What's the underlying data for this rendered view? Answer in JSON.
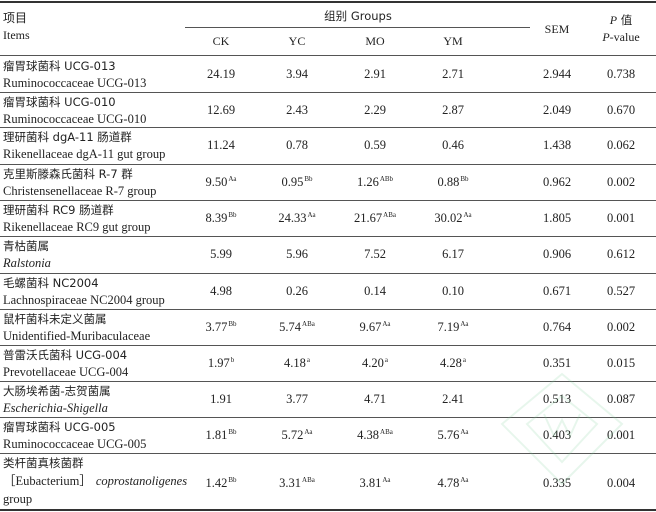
{
  "header": {
    "item_zh": "项目",
    "item_en": "Items",
    "group_label": "组别 Groups",
    "columns": [
      "CK",
      "YC",
      "MO",
      "YM"
    ],
    "sem": "SEM",
    "p_zh_italic": "P",
    "p_zh_rest": " 值",
    "p_en_italic": "P",
    "p_en_rest": "-value"
  },
  "rows": [
    {
      "name_zh": "瘤胃球菌科 UCG-013",
      "name_en": "Ruminococcaceae UCG-013",
      "en_italic": false,
      "values": [
        {
          "v": "24.19",
          "s": ""
        },
        {
          "v": "3.94",
          "s": ""
        },
        {
          "v": "2.91",
          "s": ""
        },
        {
          "v": "2.71",
          "s": ""
        }
      ],
      "sem": "2.944",
      "p": "0.738"
    },
    {
      "name_zh": "瘤胃球菌科 UCG-010",
      "name_en": "Ruminococcaceae UCG-010",
      "en_italic": false,
      "values": [
        {
          "v": "12.69",
          "s": ""
        },
        {
          "v": "2.43",
          "s": ""
        },
        {
          "v": "2.29",
          "s": ""
        },
        {
          "v": "2.87",
          "s": ""
        }
      ],
      "sem": "2.049",
      "p": "0.670"
    },
    {
      "name_zh": "理研菌科 dgA-11 肠道群",
      "name_en": "Rikenellaceae dgA-11 gut group",
      "en_italic": false,
      "values": [
        {
          "v": "11.24",
          "s": ""
        },
        {
          "v": "0.78",
          "s": ""
        },
        {
          "v": "0.59",
          "s": ""
        },
        {
          "v": "0.46",
          "s": ""
        }
      ],
      "sem": "1.438",
      "p": "0.062"
    },
    {
      "name_zh": "克里斯滕森氏菌科 R-7 群",
      "name_en": "Christensenellaceae R-7 group",
      "en_italic": false,
      "values": [
        {
          "v": "9.50",
          "s": "Aa"
        },
        {
          "v": "0.95",
          "s": "Bb"
        },
        {
          "v": "1.26",
          "s": "ABb"
        },
        {
          "v": "0.88",
          "s": "Bb"
        }
      ],
      "sem": "0.962",
      "p": "0.002"
    },
    {
      "name_zh": "理研菌科 RC9 肠道群",
      "name_en": "Rikenellaceae RC9 gut group",
      "en_italic": false,
      "values": [
        {
          "v": "8.39",
          "s": "Bb"
        },
        {
          "v": "24.33",
          "s": "Aa"
        },
        {
          "v": "21.67",
          "s": "ABa"
        },
        {
          "v": "30.02",
          "s": "Aa"
        }
      ],
      "sem": "1.805",
      "p": "0.001"
    },
    {
      "name_zh": "青枯菌属",
      "name_en": "Ralstonia",
      "en_italic": true,
      "values": [
        {
          "v": "5.99",
          "s": ""
        },
        {
          "v": "5.96",
          "s": ""
        },
        {
          "v": "7.52",
          "s": ""
        },
        {
          "v": "6.17",
          "s": ""
        }
      ],
      "sem": "0.906",
      "p": "0.612"
    },
    {
      "name_zh": "毛螺菌科 NC2004",
      "name_en": "Lachnospiraceae NC2004 group",
      "en_italic": false,
      "values": [
        {
          "v": "4.98",
          "s": ""
        },
        {
          "v": "0.26",
          "s": ""
        },
        {
          "v": "0.14",
          "s": ""
        },
        {
          "v": "0.10",
          "s": ""
        }
      ],
      "sem": "0.671",
      "p": "0.527"
    },
    {
      "name_zh": "鼠杆菌科未定义菌属",
      "name_en": "Unidentified-Muribaculaceae",
      "en_italic": false,
      "values": [
        {
          "v": "3.77",
          "s": "Bb"
        },
        {
          "v": "5.74",
          "s": "ABa"
        },
        {
          "v": "9.67",
          "s": "Aa"
        },
        {
          "v": "7.19",
          "s": "Aa"
        }
      ],
      "sem": "0.764",
      "p": "0.002"
    },
    {
      "name_zh": "普雷沃氏菌科 UCG-004",
      "name_en": "Prevotellaceae UCG-004",
      "en_italic": false,
      "values": [
        {
          "v": "1.97",
          "s": "b"
        },
        {
          "v": "4.18",
          "s": "a"
        },
        {
          "v": "4.20",
          "s": "a"
        },
        {
          "v": "4.28",
          "s": "a"
        }
      ],
      "sem": "0.351",
      "p": "0.015"
    },
    {
      "name_zh": "大肠埃希菌-志贺菌属",
      "name_en": "Escherichia-Shigella",
      "en_italic": true,
      "values": [
        {
          "v": "1.91",
          "s": ""
        },
        {
          "v": "3.77",
          "s": ""
        },
        {
          "v": "4.71",
          "s": ""
        },
        {
          "v": "2.41",
          "s": ""
        }
      ],
      "sem": "0.513",
      "p": "0.087"
    },
    {
      "name_zh": "瘤胃球菌科 UCG-005",
      "name_en": "Ruminococcaceae UCG-005",
      "en_italic": false,
      "values": [
        {
          "v": "1.81",
          "s": "Bb"
        },
        {
          "v": "5.72",
          "s": "Aa"
        },
        {
          "v": "4.38",
          "s": "ABa"
        },
        {
          "v": "5.76",
          "s": "Aa"
        }
      ],
      "sem": "0.403",
      "p": "0.001"
    },
    {
      "name_zh": "类杆菌真核菌群",
      "name_en_bracket": "［Eubacterium］",
      "name_en_italic": "coprostanoligenes",
      "name_en_3": "group",
      "values": [
        {
          "v": "1.42",
          "s": "Bb"
        },
        {
          "v": "3.31",
          "s": "ABa"
        },
        {
          "v": "3.81",
          "s": "Aa"
        },
        {
          "v": "4.78",
          "s": "Aa"
        }
      ],
      "sem": "0.335",
      "p": "0.004"
    }
  ]
}
